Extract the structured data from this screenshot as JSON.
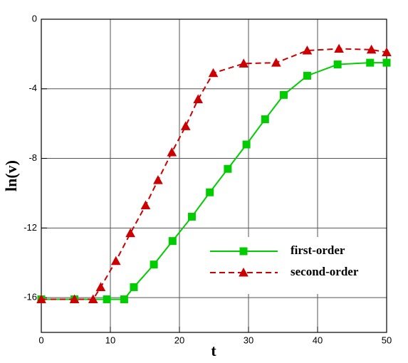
{
  "chart_data": {
    "type": "line",
    "xlabel": "t",
    "ylabel": "ln(v)",
    "xlim": [
      0,
      50
    ],
    "ylim": [
      -18,
      0
    ],
    "xticks": [
      0,
      10,
      20,
      30,
      40,
      50
    ],
    "yticks": [
      -16,
      -12,
      -8,
      -4,
      0
    ],
    "grid": true,
    "legend": "lower right",
    "series": [
      {
        "name": "first-order",
        "color": "#00cc00",
        "dash": false,
        "marker": "square",
        "x": [
          0,
          4.8,
          9.5,
          12,
          13.4,
          16.3,
          19.0,
          21.8,
          24.4,
          27.0,
          29.7,
          32.4,
          35.1,
          38.5,
          42.9,
          47.6,
          50
        ],
        "values": [
          -16.1,
          -16.1,
          -16.1,
          -16.1,
          -15.4,
          -14.1,
          -12.75,
          -11.35,
          -9.95,
          -8.6,
          -7.2,
          -5.75,
          -4.35,
          -3.25,
          -2.6,
          -2.5,
          -2.5
        ]
      },
      {
        "name": "second-order",
        "color": "#cc0000",
        "dash": true,
        "marker": "triangle",
        "x": [
          0,
          4.8,
          7.5,
          8.6,
          10.8,
          12.9,
          15.1,
          16.9,
          18.9,
          20.9,
          22.7,
          24.9,
          29.3,
          34.0,
          38.5,
          43.1,
          47.8,
          50
        ],
        "values": [
          -16.1,
          -16.1,
          -16.1,
          -15.4,
          -13.9,
          -12.3,
          -10.7,
          -9.25,
          -7.65,
          -6.15,
          -4.6,
          -3.1,
          -2.55,
          -2.5,
          -1.8,
          -1.7,
          -1.75,
          -1.9
        ]
      }
    ]
  }
}
